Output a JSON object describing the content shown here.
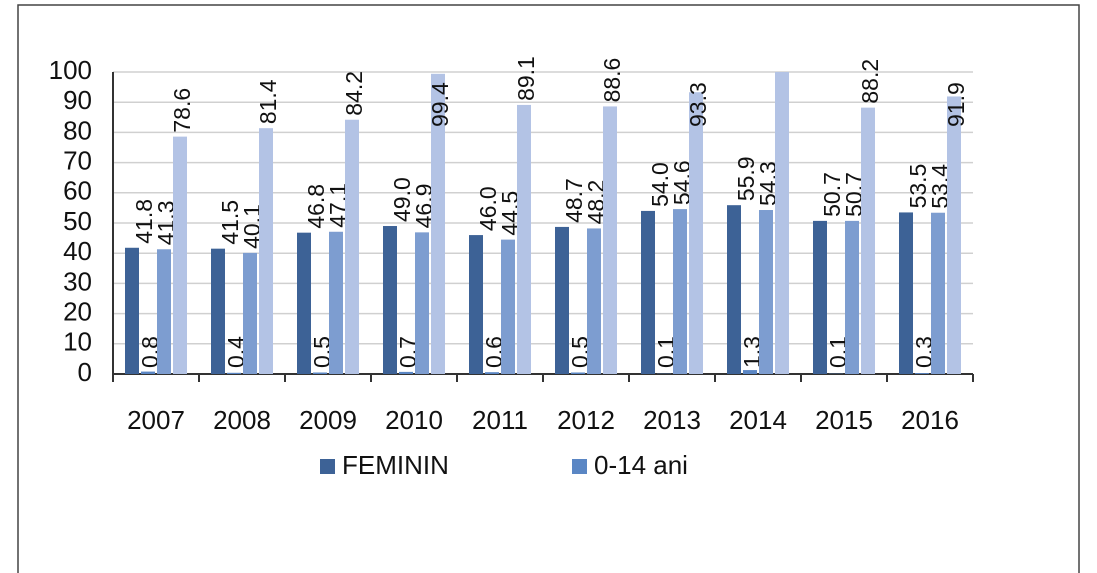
{
  "chart_data": {
    "type": "bar",
    "categories": [
      "2007",
      "2008",
      "2009",
      "2010",
      "2011",
      "2012",
      "2013",
      "2014",
      "2015",
      "2016"
    ],
    "series": [
      {
        "name": "FEMININ",
        "color": "#3d6296",
        "values": [
          41.8,
          41.5,
          46.8,
          49.0,
          46.0,
          48.7,
          54.0,
          55.9,
          50.7,
          53.5
        ],
        "value_labels": [
          "41.8",
          "41.5",
          "46.8",
          "49.0",
          "46.0",
          "48.7",
          "54.0",
          "55.9",
          "50.7",
          "53.5"
        ]
      },
      {
        "name": "0-14 ani",
        "color": "#5a86c4",
        "values": [
          0.8,
          0.4,
          0.5,
          0.7,
          0.6,
          0.5,
          0.1,
          1.3,
          0.1,
          0.3
        ],
        "value_labels": [
          "0.8",
          "0.4",
          "0.5",
          "0.7",
          "0.6",
          "0.5",
          "0.1",
          "1.3",
          "0.1",
          "0.3"
        ]
      },
      {
        "color": "#7d9dd0",
        "values": [
          41.3,
          40.1,
          47.1,
          46.9,
          44.5,
          48.2,
          54.6,
          54.3,
          50.7,
          53.4
        ],
        "value_labels": [
          "41.3",
          "40.1",
          "47.1",
          "46.9",
          "44.5",
          "48.2",
          "54.6",
          "54.3",
          "50.7",
          "53.4"
        ]
      },
      {
        "color": "#b3c3e5",
        "values": [
          78.6,
          81.4,
          84.2,
          99.4,
          89.1,
          88.6,
          93.3,
          100,
          88.2,
          91.9
        ],
        "value_labels": [
          "78.6",
          "81.4",
          "84.2",
          "99.4",
          "89.1",
          "88.6",
          "93.3",
          null,
          "88.2",
          "91.9"
        ]
      }
    ],
    "ylim": [
      0,
      100
    ],
    "yticks": [
      0,
      10,
      20,
      30,
      40,
      50,
      60,
      70,
      80,
      90,
      100
    ],
    "grid": true
  }
}
